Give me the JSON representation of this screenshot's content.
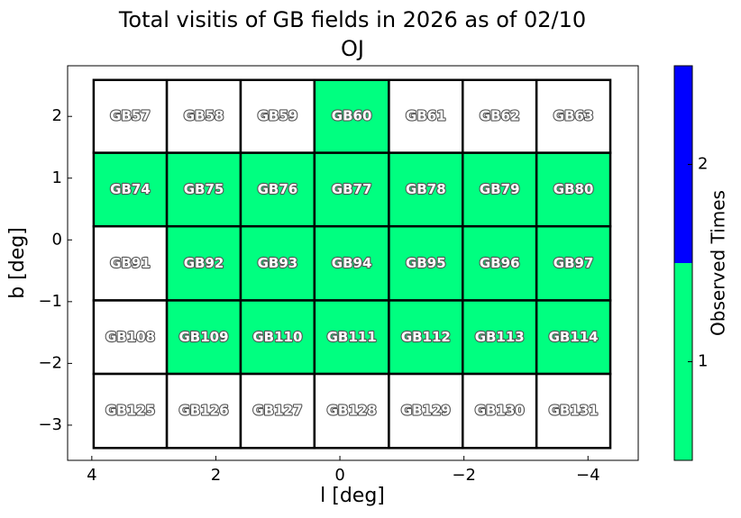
{
  "chart_data": {
    "type": "heatmap",
    "title": "Total visitis of GB fields in 2026 as of 02/10",
    "subtitle": "OJ",
    "x_label": "l [deg]",
    "y_label": "b [deg]",
    "xlim": [
      4.39,
      -4.81
    ],
    "ylim": [
      -3.57,
      2.82
    ],
    "xticks": [
      4,
      2,
      0,
      {
        "value": -2,
        "label": "−2"
      },
      {
        "value": -4,
        "label": "−4"
      }
    ],
    "yticks": [
      {
        "value": -3,
        "label": "−3"
      },
      {
        "value": -2,
        "label": "−2"
      },
      {
        "value": -1,
        "label": "−1"
      },
      0,
      1,
      2
    ],
    "x_edges": [
      3.97,
      2.79,
      1.6,
      0.41,
      -0.79,
      -1.98,
      -3.17,
      -4.36
    ],
    "y_edges": [
      2.59,
      1.41,
      0.22,
      -0.98,
      -2.17,
      -3.37
    ],
    "labels": [
      [
        "GB57",
        "GB58",
        "GB59",
        "GB60",
        "GB61",
        "GB62",
        "GB63"
      ],
      [
        "GB74",
        "GB75",
        "GB76",
        "GB77",
        "GB78",
        "GB79",
        "GB80"
      ],
      [
        "GB91",
        "GB92",
        "GB93",
        "GB94",
        "GB95",
        "GB96",
        "GB97"
      ],
      [
        "GB108",
        "GB109",
        "GB110",
        "GB111",
        "GB112",
        "GB113",
        "GB114"
      ],
      [
        "GB125",
        "GB126",
        "GB127",
        "GB128",
        "GB129",
        "GB130",
        "GB131"
      ]
    ],
    "values": [
      [
        0,
        0,
        0,
        1,
        0,
        0,
        0
      ],
      [
        1,
        1,
        1,
        1,
        1,
        1,
        1
      ],
      [
        0,
        1,
        1,
        1,
        1,
        1,
        1
      ],
      [
        0,
        1,
        1,
        1,
        1,
        1,
        1
      ],
      [
        0,
        0,
        0,
        0,
        0,
        0,
        0
      ]
    ],
    "under_color": "#ffffff",
    "colorbar": {
      "label": "Observed Times",
      "colors": [
        "#00ff80",
        "#0000ff"
      ],
      "clim": [
        0.5,
        2.5
      ],
      "ticks": [
        1,
        2
      ]
    }
  }
}
